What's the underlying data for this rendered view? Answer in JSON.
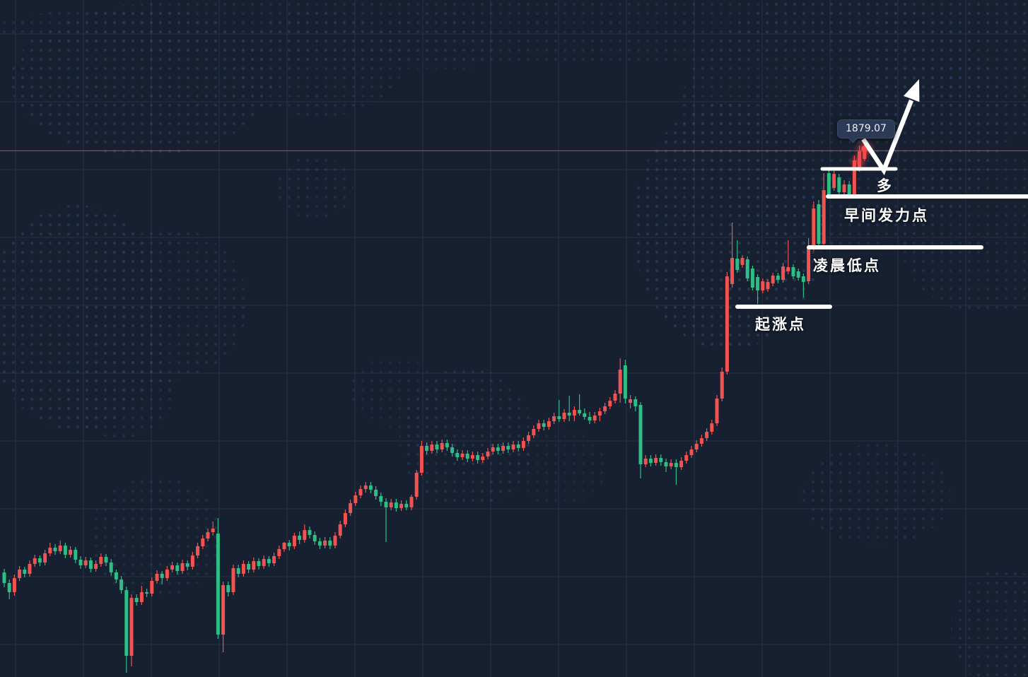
{
  "chart_data": {
    "type": "candlestick",
    "current_price_label": "1879.07",
    "price_line": 1879.07,
    "background_color": "#172031",
    "up_color": "#f05350",
    "down_color": "#2ebd85",
    "price_line_color": "#d9545b",
    "annotation_color": "#ffffff",
    "trend_arrow": "up",
    "legend_position": "none",
    "grid": true,
    "levels": [
      {
        "label": "多",
        "price": 1876.5
      },
      {
        "label": "早间发力点",
        "price": 1872.6
      },
      {
        "label": "凌晨低点",
        "price": 1865.4
      },
      {
        "label": "起涨点",
        "price": 1857.0
      }
    ],
    "ylim": [
      1805.0,
      1884.0
    ],
    "candles": [
      [
        1819.4,
        1819.9,
        1817.3,
        1817.9
      ],
      [
        1817.9,
        1818.4,
        1815.6,
        1816.6
      ],
      [
        1816.6,
        1819.1,
        1816.1,
        1818.6
      ],
      [
        1818.6,
        1820.3,
        1818.2,
        1819.8
      ],
      [
        1819.8,
        1820.2,
        1818.7,
        1819.2
      ],
      [
        1819.2,
        1821.1,
        1818.8,
        1820.6
      ],
      [
        1820.6,
        1821.9,
        1820.2,
        1821.4
      ],
      [
        1821.4,
        1821.8,
        1820.3,
        1820.8
      ],
      [
        1820.8,
        1822.6,
        1820.4,
        1822.1
      ],
      [
        1822.1,
        1823.6,
        1821.7,
        1822.9
      ],
      [
        1822.9,
        1823.4,
        1821.9,
        1822.4
      ],
      [
        1822.4,
        1823.9,
        1822.0,
        1823.2
      ],
      [
        1823.2,
        1823.6,
        1821.4,
        1821.9
      ],
      [
        1821.9,
        1823.1,
        1821.5,
        1822.6
      ],
      [
        1822.6,
        1823.0,
        1820.7,
        1821.2
      ],
      [
        1821.2,
        1821.7,
        1819.9,
        1820.4
      ],
      [
        1820.4,
        1821.6,
        1820.0,
        1821.1
      ],
      [
        1821.1,
        1821.5,
        1819.4,
        1819.9
      ],
      [
        1819.9,
        1821.1,
        1819.5,
        1820.6
      ],
      [
        1820.6,
        1822.1,
        1820.2,
        1821.6
      ],
      [
        1821.6,
        1822.0,
        1820.3,
        1820.8
      ],
      [
        1820.8,
        1821.3,
        1818.9,
        1819.4
      ],
      [
        1819.4,
        1819.8,
        1817.9,
        1818.4
      ],
      [
        1818.4,
        1818.9,
        1816.4,
        1816.9
      ],
      [
        1816.9,
        1817.4,
        1805.2,
        1807.6
      ],
      [
        1807.6,
        1816.3,
        1806.1,
        1815.8
      ],
      [
        1815.8,
        1816.3,
        1814.7,
        1815.2
      ],
      [
        1815.2,
        1817.5,
        1814.8,
        1816.6
      ],
      [
        1816.6,
        1817.1,
        1815.9,
        1816.4
      ],
      [
        1816.4,
        1818.7,
        1816.0,
        1818.2
      ],
      [
        1818.2,
        1819.7,
        1817.8,
        1819.2
      ],
      [
        1819.2,
        1819.6,
        1817.7,
        1818.6
      ],
      [
        1818.6,
        1820.3,
        1818.2,
        1819.8
      ],
      [
        1819.8,
        1820.9,
        1819.4,
        1820.4
      ],
      [
        1820.4,
        1820.8,
        1819.1,
        1819.6
      ],
      [
        1819.6,
        1821.2,
        1819.2,
        1820.7
      ],
      [
        1820.7,
        1821.1,
        1819.7,
        1820.2
      ],
      [
        1820.2,
        1822.3,
        1819.8,
        1821.8
      ],
      [
        1821.8,
        1823.6,
        1821.4,
        1823.1
      ],
      [
        1823.1,
        1824.7,
        1822.7,
        1824.2
      ],
      [
        1824.2,
        1825.6,
        1823.8,
        1825.1
      ],
      [
        1825.1,
        1826.6,
        1824.6,
        1825.6
      ],
      [
        1824.9,
        1827.1,
        1810.0,
        1810.6
      ],
      [
        1810.6,
        1818.1,
        1808.1,
        1817.6
      ],
      [
        1817.6,
        1818.1,
        1816.0,
        1816.6
      ],
      [
        1816.6,
        1820.5,
        1816.2,
        1820.0
      ],
      [
        1820.0,
        1820.5,
        1818.7,
        1819.2
      ],
      [
        1819.2,
        1821.1,
        1818.8,
        1820.6
      ],
      [
        1820.6,
        1821.0,
        1819.3,
        1819.8
      ],
      [
        1819.8,
        1821.5,
        1819.4,
        1821.0
      ],
      [
        1821.0,
        1821.4,
        1819.8,
        1820.3
      ],
      [
        1820.3,
        1821.8,
        1819.9,
        1821.3
      ],
      [
        1821.3,
        1821.7,
        1820.2,
        1820.7
      ],
      [
        1820.7,
        1822.2,
        1820.3,
        1821.7
      ],
      [
        1821.7,
        1823.2,
        1821.3,
        1822.7
      ],
      [
        1822.7,
        1823.7,
        1822.3,
        1823.6
      ],
      [
        1823.6,
        1824.0,
        1822.5,
        1823.1
      ],
      [
        1823.1,
        1825.0,
        1822.7,
        1824.6
      ],
      [
        1824.6,
        1825.2,
        1823.4,
        1824.0
      ],
      [
        1824.0,
        1826.2,
        1823.6,
        1825.4
      ],
      [
        1825.4,
        1825.9,
        1824.2,
        1824.7
      ],
      [
        1824.7,
        1825.2,
        1823.3,
        1823.8
      ],
      [
        1823.8,
        1824.3,
        1822.7,
        1823.2
      ],
      [
        1823.2,
        1824.4,
        1822.8,
        1823.9
      ],
      [
        1823.9,
        1824.4,
        1822.7,
        1823.2
      ],
      [
        1823.2,
        1825.1,
        1822.8,
        1824.6
      ],
      [
        1824.6,
        1826.7,
        1824.2,
        1826.2
      ],
      [
        1826.2,
        1828.3,
        1825.8,
        1827.8
      ],
      [
        1827.8,
        1829.7,
        1827.4,
        1829.2
      ],
      [
        1829.2,
        1830.8,
        1828.8,
        1830.3
      ],
      [
        1830.3,
        1831.7,
        1829.9,
        1831.2
      ],
      [
        1831.2,
        1832.2,
        1830.7,
        1831.7
      ],
      [
        1831.7,
        1832.2,
        1830.6,
        1831.1
      ],
      [
        1831.1,
        1831.6,
        1829.7,
        1830.2
      ],
      [
        1830.2,
        1830.7,
        1828.8,
        1829.4
      ],
      [
        1829.4,
        1829.9,
        1823.7,
        1828.6
      ],
      [
        1828.6,
        1829.8,
        1828.2,
        1829.3
      ],
      [
        1829.3,
        1829.8,
        1828.0,
        1828.5
      ],
      [
        1828.5,
        1829.6,
        1828.1,
        1829.1
      ],
      [
        1829.1,
        1829.6,
        1828.2,
        1828.6
      ],
      [
        1828.6,
        1830.4,
        1828.2,
        1830.1
      ],
      [
        1830.1,
        1833.9,
        1829.7,
        1833.5
      ],
      [
        1833.5,
        1838.0,
        1833.1,
        1837.3
      ],
      [
        1837.3,
        1837.8,
        1836.1,
        1836.6
      ],
      [
        1836.6,
        1838.0,
        1836.2,
        1837.5
      ],
      [
        1837.5,
        1838.0,
        1836.3,
        1836.8
      ],
      [
        1836.8,
        1838.2,
        1836.4,
        1837.7
      ],
      [
        1837.7,
        1838.2,
        1836.6,
        1837.1
      ],
      [
        1837.1,
        1837.6,
        1835.8,
        1836.3
      ],
      [
        1836.3,
        1836.8,
        1835.2,
        1835.7
      ],
      [
        1835.7,
        1836.7,
        1835.3,
        1836.2
      ],
      [
        1836.2,
        1836.7,
        1835.0,
        1835.5
      ],
      [
        1835.5,
        1836.5,
        1835.1,
        1836.0
      ],
      [
        1836.0,
        1836.5,
        1834.8,
        1835.3
      ],
      [
        1835.3,
        1836.3,
        1834.9,
        1835.8
      ],
      [
        1835.8,
        1837.0,
        1835.4,
        1836.5
      ],
      [
        1836.5,
        1837.6,
        1836.1,
        1837.1
      ],
      [
        1837.1,
        1837.6,
        1836.1,
        1836.6
      ],
      [
        1836.6,
        1837.8,
        1836.2,
        1837.3
      ],
      [
        1837.3,
        1837.8,
        1836.3,
        1836.8
      ],
      [
        1836.8,
        1838.0,
        1836.4,
        1837.5
      ],
      [
        1837.5,
        1838.0,
        1836.5,
        1837.0
      ],
      [
        1837.0,
        1838.5,
        1836.6,
        1838.0
      ],
      [
        1838.0,
        1839.3,
        1837.6,
        1838.8
      ],
      [
        1838.8,
        1840.2,
        1838.4,
        1839.7
      ],
      [
        1839.7,
        1841.0,
        1839.3,
        1840.5
      ],
      [
        1840.5,
        1841.0,
        1839.5,
        1840.0
      ],
      [
        1840.0,
        1841.3,
        1839.6,
        1840.8
      ],
      [
        1840.8,
        1842.0,
        1840.4,
        1841.5
      ],
      [
        1841.5,
        1843.8,
        1840.7,
        1841.1
      ],
      [
        1841.1,
        1842.5,
        1840.7,
        1842.0
      ],
      [
        1842.0,
        1844.4,
        1840.8,
        1841.6
      ],
      [
        1841.6,
        1842.9,
        1840.8,
        1842.4
      ],
      [
        1842.4,
        1844.6,
        1841.6,
        1841.9
      ],
      [
        1841.9,
        1842.6,
        1841.0,
        1841.4
      ],
      [
        1841.4,
        1842.1,
        1840.4,
        1840.9
      ],
      [
        1840.9,
        1842.1,
        1840.5,
        1841.6
      ],
      [
        1841.6,
        1842.7,
        1840.8,
        1842.2
      ],
      [
        1842.2,
        1843.4,
        1841.8,
        1842.9
      ],
      [
        1842.9,
        1844.2,
        1842.5,
        1843.7
      ],
      [
        1843.7,
        1845.2,
        1843.3,
        1844.7
      ],
      [
        1844.7,
        1849.7,
        1843.4,
        1848.1
      ],
      [
        1848.7,
        1849.5,
        1843.3,
        1844.0
      ],
      [
        1843.4,
        1844.5,
        1842.6,
        1843.9
      ],
      [
        1843.9,
        1844.3,
        1842.2,
        1842.9
      ],
      [
        1843.1,
        1843.5,
        1832.7,
        1834.7
      ],
      [
        1834.7,
        1836.0,
        1834.3,
        1835.5
      ],
      [
        1835.5,
        1836.0,
        1834.4,
        1834.9
      ],
      [
        1834.9,
        1836.1,
        1834.5,
        1835.6
      ],
      [
        1835.6,
        1836.1,
        1834.5,
        1835.0
      ],
      [
        1835.0,
        1835.5,
        1833.6,
        1834.4
      ],
      [
        1834.4,
        1835.4,
        1834.0,
        1834.9
      ],
      [
        1834.9,
        1835.4,
        1831.8,
        1834.3
      ],
      [
        1834.3,
        1835.7,
        1833.9,
        1835.2
      ],
      [
        1835.2,
        1836.5,
        1834.8,
        1836.0
      ],
      [
        1836.0,
        1837.3,
        1835.6,
        1836.8
      ],
      [
        1836.8,
        1838.1,
        1836.4,
        1837.6
      ],
      [
        1837.6,
        1838.9,
        1837.2,
        1838.4
      ],
      [
        1838.4,
        1839.8,
        1838.0,
        1839.3
      ],
      [
        1839.3,
        1841.0,
        1838.9,
        1840.5
      ],
      [
        1840.5,
        1844.5,
        1840.1,
        1844.0
      ],
      [
        1844.0,
        1848.4,
        1843.6,
        1847.8
      ],
      [
        1847.8,
        1861.9,
        1847.4,
        1861.3
      ],
      [
        1860.2,
        1868.9,
        1859.7,
        1863.9
      ],
      [
        1863.8,
        1866.4,
        1861.8,
        1862.2
      ],
      [
        1862.9,
        1864.3,
        1862.5,
        1863.9
      ],
      [
        1863.7,
        1864.1,
        1860.6,
        1861.0
      ],
      [
        1862.4,
        1862.8,
        1859.3,
        1859.7
      ],
      [
        1861.2,
        1861.6,
        1857.4,
        1859.3
      ],
      [
        1859.3,
        1861.0,
        1858.9,
        1860.6
      ],
      [
        1859.5,
        1860.9,
        1859.1,
        1860.5
      ],
      [
        1860.3,
        1861.8,
        1859.9,
        1861.4
      ],
      [
        1861.4,
        1861.8,
        1860.3,
        1860.8
      ],
      [
        1860.8,
        1863.2,
        1860.4,
        1862.7
      ],
      [
        1862.0,
        1866.4,
        1861.6,
        1862.6
      ],
      [
        1862.6,
        1863.0,
        1860.9,
        1861.3
      ],
      [
        1862.0,
        1862.4,
        1860.7,
        1861.1
      ],
      [
        1861.3,
        1861.7,
        1858.3,
        1860.5
      ],
      [
        1860.6,
        1866.7,
        1860.2,
        1865.3
      ],
      [
        1865.3,
        1871.9,
        1864.9,
        1870.9
      ],
      [
        1871.5,
        1872.1,
        1865.3,
        1865.9
      ],
      [
        1865.9,
        1875.9,
        1865.5,
        1873.5
      ],
      [
        1875.9,
        1876.4,
        1872.6,
        1872.9
      ],
      [
        1873.8,
        1876.3,
        1873.4,
        1875.8
      ],
      [
        1875.3,
        1875.8,
        1872.9,
        1873.2
      ],
      [
        1873.2,
        1874.9,
        1872.8,
        1874.3
      ],
      [
        1874.3,
        1874.8,
        1872.5,
        1872.8
      ],
      [
        1872.7,
        1878.4,
        1872.4,
        1877.7
      ],
      [
        1876.5,
        1879.8,
        1876.1,
        1879.0
      ],
      [
        1877.9,
        1880.1,
        1877.6,
        1879.07
      ]
    ]
  }
}
